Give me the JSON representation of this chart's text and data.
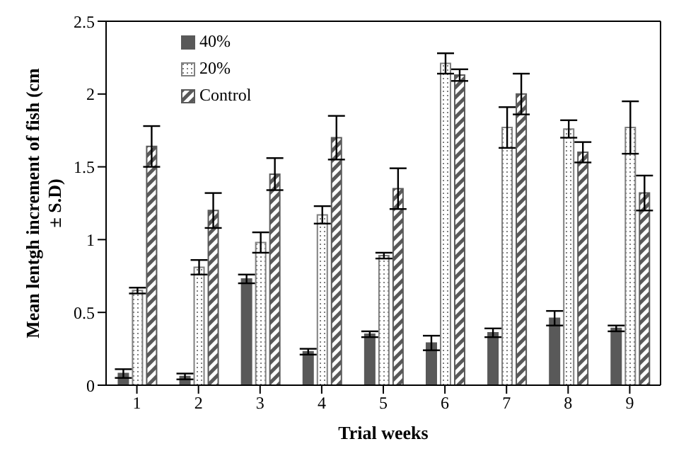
{
  "chart_data": {
    "type": "bar",
    "xlabel": "Trial weeks",
    "ylabel": "Mean lentgh increment of fish (cm ± S.D)",
    "categories": [
      "1",
      "2",
      "3",
      "4",
      "5",
      "6",
      "7",
      "8",
      "9"
    ],
    "series": [
      {
        "name": "40%",
        "color": "#595959",
        "values": [
          0.08,
          0.06,
          0.73,
          0.23,
          0.35,
          0.29,
          0.36,
          0.46,
          0.39
        ],
        "errors": [
          0.03,
          0.02,
          0.03,
          0.02,
          0.02,
          0.05,
          0.03,
          0.05,
          0.02
        ]
      },
      {
        "name": "20%",
        "color": "#808080",
        "values": [
          0.65,
          0.81,
          0.98,
          1.17,
          0.89,
          2.21,
          1.77,
          1.76,
          1.77
        ],
        "errors": [
          0.02,
          0.05,
          0.07,
          0.06,
          0.02,
          0.07,
          0.14,
          0.06,
          0.18
        ]
      },
      {
        "name": "Control",
        "color": "#595959",
        "values": [
          1.64,
          1.2,
          1.45,
          1.7,
          1.35,
          2.13,
          2.0,
          1.6,
          1.32
        ],
        "errors": [
          0.14,
          0.12,
          0.11,
          0.15,
          0.14,
          0.04,
          0.14,
          0.07,
          0.12
        ]
      }
    ],
    "ylim": [
      0,
      2.5
    ],
    "yticks": [
      0,
      0.5,
      1,
      1.5,
      2,
      2.5
    ],
    "legend": "top left"
  }
}
